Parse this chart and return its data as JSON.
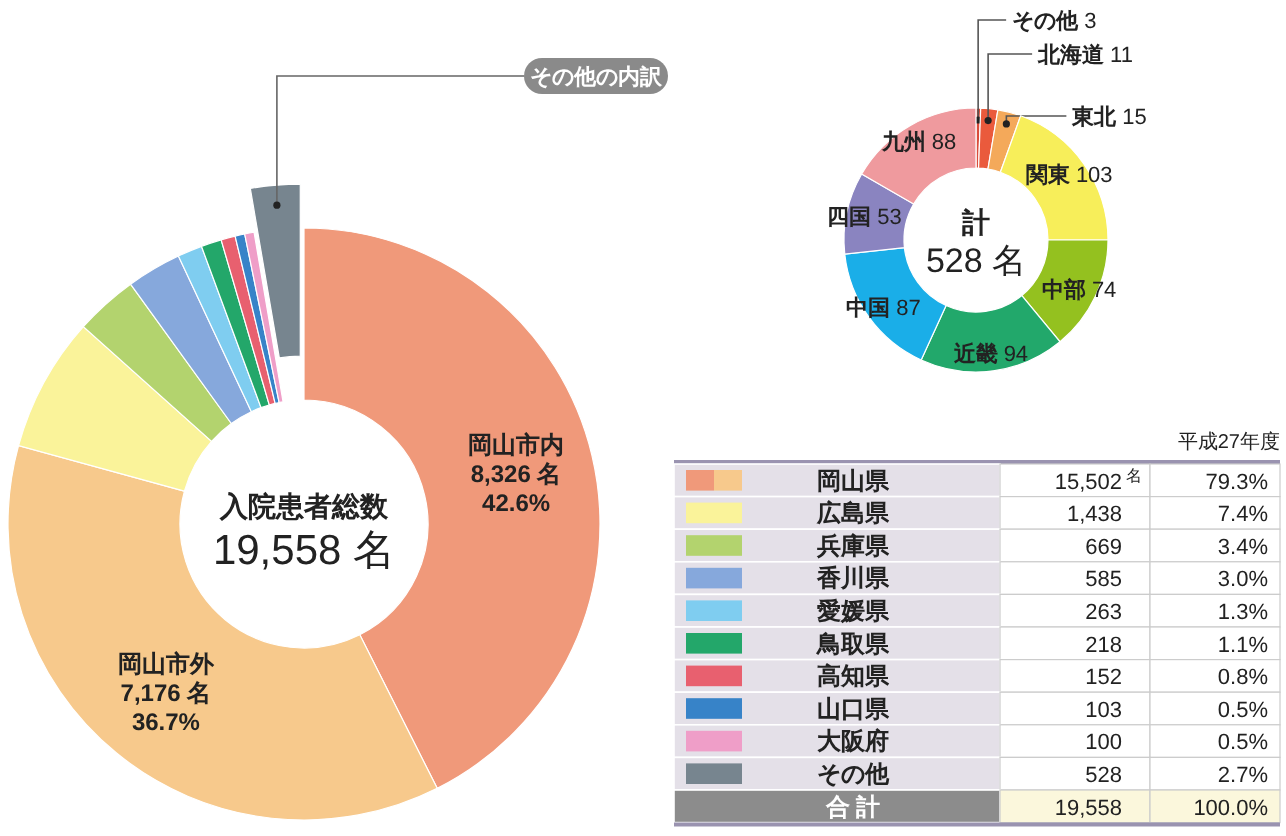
{
  "chart_data": [
    {
      "type": "donut",
      "annotations": [
        "入院患者総数",
        "19,558 名",
        "その他の内訳"
      ],
      "categories": [
        "岡山市内",
        "岡山市外",
        null,
        null,
        null,
        null,
        null,
        null,
        null,
        null,
        null
      ],
      "values": [
        8326,
        7176,
        1438,
        669,
        585,
        263,
        218,
        152,
        103,
        100,
        528
      ],
      "colors": [
        "#f0997a",
        "#f7c98c",
        "#faf39a",
        "#b3d36e",
        "#86a8dc",
        "#7fcdf0",
        "#23a76a",
        "#e8606f",
        "#3783c8",
        "#ef9ec8",
        "#77858f"
      ],
      "value_labels": [
        "8,326 名\n42.6%",
        "7,176 名\n36.7%",
        null,
        null,
        null,
        null,
        null,
        null,
        null,
        null,
        null
      ]
    },
    {
      "type": "donut",
      "annotations": [
        "計",
        "528 名"
      ],
      "categories": [
        "その他",
        "北海道",
        "東北",
        "関東",
        "中部",
        "近畿",
        "中国",
        "四国",
        "九州"
      ],
      "values": [
        3,
        11,
        15,
        103,
        74,
        94,
        87,
        53,
        88
      ],
      "colors": [
        "#d94c3a",
        "#ea5a3c",
        "#f4a95a",
        "#f7ee5a",
        "#94c11f",
        "#22a86b",
        "#1aaee8",
        "#8a84c0",
        "#ef9a9e"
      ],
      "data_labels": true
    },
    {
      "type": "other",
      "title": "平成27年度",
      "annotations": [
        "名"
      ],
      "categories": [
        "岡山県",
        "広島県",
        "兵庫県",
        "香川県",
        "愛媛県",
        "鳥取県",
        "高知県",
        "山口県",
        "大阪府",
        "その他",
        "合 計"
      ],
      "series": [
        {
          "colors": [
            "#ffffff",
            "#ffffff",
            "#ffffff",
            "#ffffff",
            "#ffffff",
            "#ffffff",
            "#ffffff",
            "#ffffff",
            "#ffffff",
            "#ffffff",
            "#fbf7dc"
          ],
          "values": [
            15502,
            1438,
            669,
            585,
            263,
            218,
            152,
            103,
            100,
            528,
            19558
          ],
          "value_labels": [
            "15,502",
            "1,438",
            "669",
            "585",
            "263",
            "218",
            "152",
            "103",
            "100",
            "528",
            "19,558"
          ]
        },
        {
          "colors": [
            "#ffffff",
            "#ffffff",
            "#ffffff",
            "#ffffff",
            "#ffffff",
            "#ffffff",
            "#ffffff",
            "#ffffff",
            "#ffffff",
            "#ffffff",
            "#fbf7dc"
          ],
          "values": [
            79.3,
            7.4,
            3.4,
            3.0,
            1.3,
            1.1,
            0.8,
            0.5,
            0.5,
            2.7,
            100.0
          ],
          "value_labels": [
            "79.3%",
            "7.4%",
            "3.4%",
            "3.0%",
            "1.3%",
            "1.1%",
            "0.8%",
            "0.5%",
            "0.5%",
            "2.7%",
            "100.0%"
          ]
        }
      ]
    }
  ]
}
